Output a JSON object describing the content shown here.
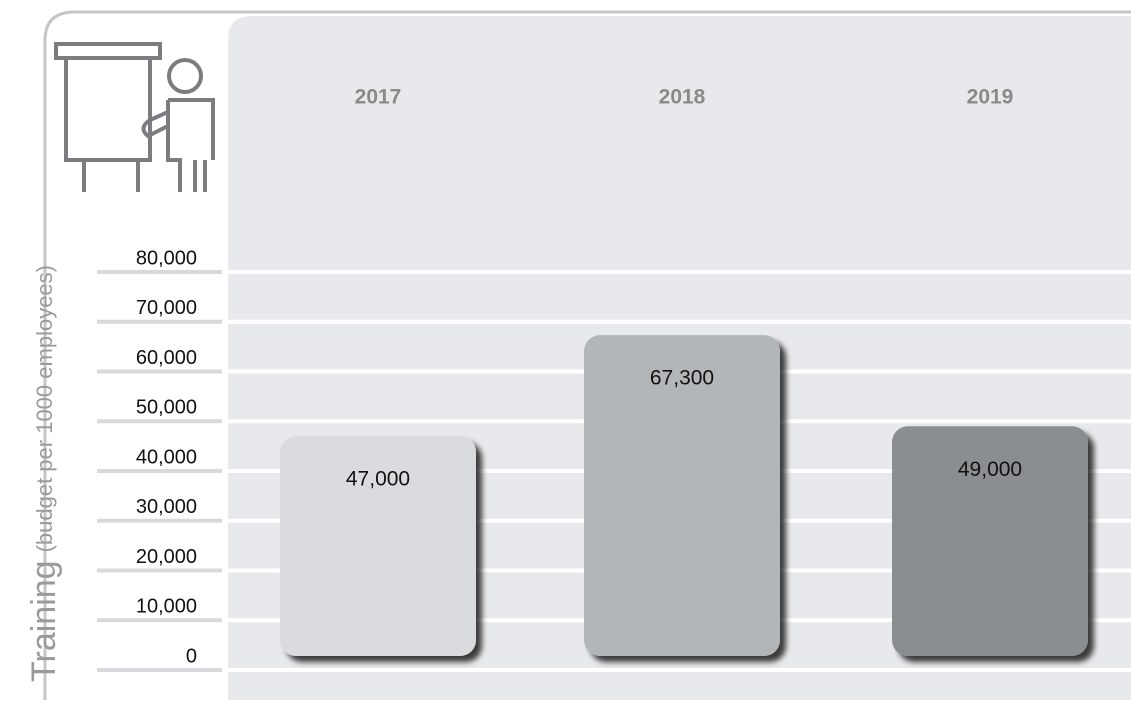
{
  "chart_data": {
    "type": "bar",
    "y_label": "Training",
    "y_label_sub": "(budget per 1000 employees)",
    "categories": [
      "2017",
      "2018",
      "2019"
    ],
    "values": [
      47000,
      67300,
      49000
    ],
    "value_labels": [
      "47,000",
      "67,300",
      "49,000"
    ],
    "colors": [
      "#d9dbde",
      "#b3b6b9",
      "#8b8e91"
    ],
    "ylim": [
      0,
      80000
    ],
    "yticks": [
      0,
      {
        "value": 10000,
        "label": "10,000"
      },
      {
        "value": 20000,
        "label": "20,000"
      },
      {
        "value": 30000,
        "label": "30,000"
      },
      {
        "value": 40000,
        "label": "40,000"
      },
      {
        "value": 50000,
        "label": "50,000"
      },
      {
        "value": 60000,
        "label": "60,000"
      },
      {
        "value": 70000,
        "label": "70,000"
      },
      {
        "value": 80000,
        "label": "80,000"
      }
    ],
    "grid": true
  }
}
